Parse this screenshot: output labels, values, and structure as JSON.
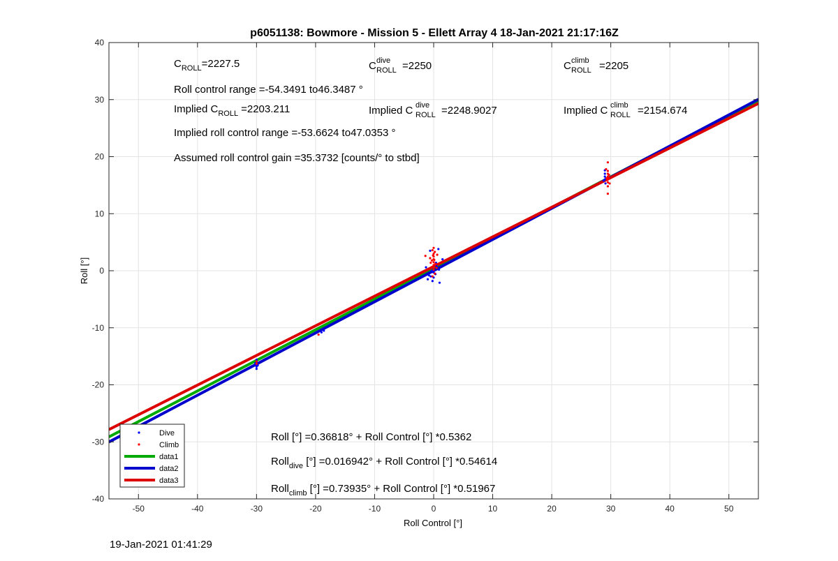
{
  "chart_data": {
    "type": "scatter",
    "title": "p6051138: Bowmore - Mission 5 - Ellett Array 4 18-Jan-2021 21:17:16Z",
    "xlabel": "Roll Control [°]",
    "ylabel": "Roll [°]",
    "xlim": [
      -55,
      55
    ],
    "ylim": [
      -40,
      40
    ],
    "xticks": [
      -50,
      -40,
      -30,
      -20,
      -10,
      0,
      10,
      20,
      30,
      40,
      50
    ],
    "yticks": [
      -40,
      -30,
      -20,
      -10,
      0,
      10,
      20,
      30,
      40
    ],
    "grid": true,
    "legend_position": "bottom-left",
    "series": [
      {
        "name": "Dive",
        "kind": "points",
        "color": "#0000ff",
        "points": [
          [
            -30,
            -15.6
          ],
          [
            -30,
            -16.0
          ],
          [
            -30,
            -16.4
          ],
          [
            -30,
            -16.8
          ],
          [
            -30.2,
            -16.2
          ],
          [
            -29.8,
            -16.6
          ],
          [
            -30,
            -17.2
          ],
          [
            -19,
            -10.8
          ],
          [
            -18.6,
            -10.5
          ],
          [
            0,
            0.3
          ],
          [
            0,
            -0.3
          ],
          [
            -0.3,
            0.0
          ],
          [
            0.3,
            -0.6
          ],
          [
            -0.5,
            -1.0
          ],
          [
            0.5,
            0.8
          ],
          [
            0,
            -1.2
          ],
          [
            1.0,
            -2.1
          ],
          [
            -1.0,
            -1.5
          ],
          [
            0.8,
            3.8
          ],
          [
            -0.6,
            3.5
          ],
          [
            1.5,
            2.0
          ],
          [
            -1.3,
            0.6
          ],
          [
            0.4,
            1.4
          ],
          [
            -0.2,
            -1.8
          ],
          [
            0.9,
            0.2
          ],
          [
            -0.8,
            -0.8
          ],
          [
            29,
            16.0
          ],
          [
            29,
            16.5
          ],
          [
            29,
            17.0
          ],
          [
            29.2,
            16.2
          ],
          [
            28.8,
            15.8
          ],
          [
            29,
            17.6
          ],
          [
            29.1,
            15.3
          ]
        ]
      },
      {
        "name": "Climb",
        "kind": "points",
        "color": "#ff0000",
        "points": [
          [
            -30,
            -15.9
          ],
          [
            -30,
            -16.3
          ],
          [
            -19.5,
            -11.2
          ],
          [
            0,
            0.6
          ],
          [
            0,
            1.0
          ],
          [
            0,
            1.5
          ],
          [
            0,
            2.0
          ],
          [
            0,
            2.5
          ],
          [
            0,
            3.0
          ],
          [
            -0.2,
            3.6
          ],
          [
            0.2,
            3.3
          ],
          [
            0,
            4.0
          ],
          [
            -0.3,
            1.8
          ],
          [
            0.3,
            1.2
          ],
          [
            -0.6,
            2.2
          ],
          [
            0.6,
            2.8
          ],
          [
            0,
            0.2
          ],
          [
            0.2,
            -0.5
          ],
          [
            -0.2,
            -1.0
          ],
          [
            -1.4,
            2.6
          ],
          [
            0.5,
            0.5
          ],
          [
            -0.5,
            1.4
          ],
          [
            0.1,
            1.9
          ],
          [
            -0.1,
            2.7
          ],
          [
            29.5,
            16.0
          ],
          [
            29.5,
            16.5
          ],
          [
            29.5,
            17.0
          ],
          [
            29.5,
            15.5
          ],
          [
            29.3,
            16.2
          ],
          [
            29.7,
            16.8
          ],
          [
            29.5,
            17.5
          ],
          [
            29.5,
            19.0
          ],
          [
            29.5,
            13.5
          ],
          [
            29.5,
            14.8
          ],
          [
            29.8,
            15.3
          ],
          [
            29.2,
            17.8
          ],
          [
            29.6,
            16.3
          ],
          [
            29.4,
            15.9
          ]
        ]
      },
      {
        "name": "data1",
        "kind": "line",
        "color": "#00aa00",
        "intercept": 0.36818,
        "slope": 0.5362
      },
      {
        "name": "data2",
        "kind": "line",
        "color": "#0000cc",
        "intercept": 0.016942,
        "slope": 0.54614
      },
      {
        "name": "data3",
        "kind": "line",
        "color": "#dd0000",
        "intercept": 0.73935,
        "slope": 0.51967
      }
    ],
    "annotations": {
      "c_roll": "=2227.5",
      "c_roll_dive": "=2250",
      "c_roll_climb": "=2205",
      "roll_control_range": "Roll control range =-54.3491 to46.3487 °",
      "implied_prefix": "Implied C",
      "implied_c_roll": "=2203.211",
      "implied_c_roll_dive": "=2248.9027",
      "implied_c_roll_climb": "=2154.674",
      "implied_roll_control_range": "Implied roll control range =-53.6624 to47.0353 °",
      "assumed_gain": "Assumed roll control gain =35.3732 [counts/° to stbd]",
      "sub_roll": "ROLL",
      "sup_dive": "dive",
      "sup_climb": "climb",
      "letter_c": "C",
      "fit_all": "Roll [°] =0.36818° + Roll Control [°] *0.5362",
      "fit_dive_prefix": "Roll",
      "fit_dive_sub": "dive",
      "fit_dive_rest": " [°] =0.016942° + Roll Control [°] *0.54614",
      "fit_climb_prefix": "Roll",
      "fit_climb_sub": "climb",
      "fit_climb_rest": " [°] =0.73935° + Roll Control [°] *0.51967"
    }
  },
  "footer": {
    "timestamp": "19-Jan-2021 01:41:29"
  }
}
